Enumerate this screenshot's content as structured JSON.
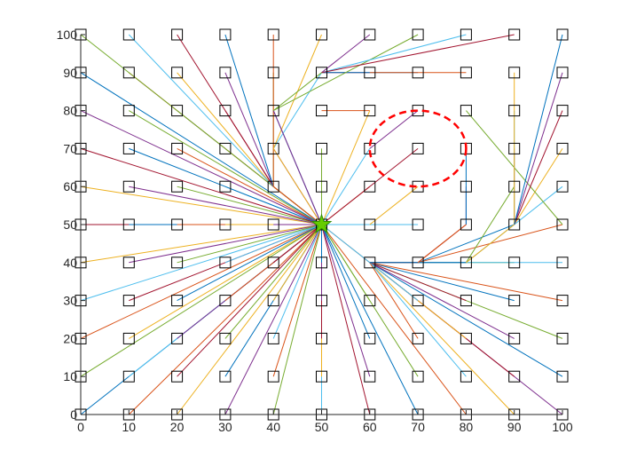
{
  "chart_data": {
    "type": "scatter",
    "title": "",
    "xlabel": "",
    "ylabel": "",
    "xlim": [
      0,
      100
    ],
    "ylim": [
      0,
      100
    ],
    "xticks": [
      0,
      10,
      20,
      30,
      40,
      50,
      60,
      70,
      80,
      90,
      100
    ],
    "yticks": [
      0,
      10,
      20,
      30,
      40,
      50,
      60,
      70,
      80,
      90,
      100
    ],
    "grid": false,
    "legend": "none",
    "nodes": {
      "marker": "square",
      "x": [
        0,
        10,
        20,
        30,
        40,
        50,
        60,
        70,
        80,
        90,
        100
      ],
      "y": [
        0,
        10,
        20,
        30,
        40,
        50,
        60,
        70,
        80,
        90,
        100
      ]
    },
    "goal": {
      "x": 50,
      "y": 50,
      "marker": "star",
      "color": "#66cc00"
    },
    "obstacle": {
      "shape": "circle",
      "cx": 70,
      "cy": 70,
      "r": 10,
      "color": "#ff0000",
      "style": "dashed"
    },
    "line_colors": [
      "#0072bd",
      "#d95319",
      "#edb120",
      "#7e2f8e",
      "#77ac30",
      "#4dbeee",
      "#a2142f"
    ],
    "edges": [
      [
        [
          0,
          0
        ],
        [
          50,
          50
        ]
      ],
      [
        [
          10,
          0
        ],
        [
          50,
          50
        ]
      ],
      [
        [
          20,
          0
        ],
        [
          50,
          50
        ]
      ],
      [
        [
          30,
          0
        ],
        [
          50,
          50
        ]
      ],
      [
        [
          40,
          0
        ],
        [
          50,
          50
        ]
      ],
      [
        [
          50,
          0
        ],
        [
          50,
          50
        ]
      ],
      [
        [
          60,
          0
        ],
        [
          50,
          50
        ]
      ],
      [
        [
          70,
          0
        ],
        [
          50,
          50
        ]
      ],
      [
        [
          80,
          0
        ],
        [
          50,
          50
        ]
      ],
      [
        [
          90,
          0
        ],
        [
          60,
          40
        ]
      ],
      [
        [
          100,
          0
        ],
        [
          60,
          40
        ]
      ],
      [
        [
          0,
          10
        ],
        [
          50,
          50
        ]
      ],
      [
        [
          10,
          10
        ],
        [
          50,
          50
        ]
      ],
      [
        [
          20,
          10
        ],
        [
          50,
          50
        ]
      ],
      [
        [
          30,
          10
        ],
        [
          50,
          50
        ]
      ],
      [
        [
          40,
          10
        ],
        [
          50,
          50
        ]
      ],
      [
        [
          50,
          10
        ],
        [
          50,
          50
        ]
      ],
      [
        [
          60,
          10
        ],
        [
          50,
          50
        ]
      ],
      [
        [
          70,
          10
        ],
        [
          50,
          50
        ]
      ],
      [
        [
          80,
          10
        ],
        [
          60,
          40
        ]
      ],
      [
        [
          90,
          10
        ],
        [
          60,
          40
        ]
      ],
      [
        [
          100,
          10
        ],
        [
          60,
          40
        ]
      ],
      [
        [
          0,
          20
        ],
        [
          50,
          50
        ]
      ],
      [
        [
          10,
          20
        ],
        [
          50,
          50
        ]
      ],
      [
        [
          20,
          20
        ],
        [
          50,
          50
        ]
      ],
      [
        [
          30,
          20
        ],
        [
          50,
          50
        ]
      ],
      [
        [
          40,
          20
        ],
        [
          50,
          50
        ]
      ],
      [
        [
          50,
          20
        ],
        [
          50,
          50
        ]
      ],
      [
        [
          60,
          20
        ],
        [
          50,
          50
        ]
      ],
      [
        [
          70,
          20
        ],
        [
          60,
          40
        ]
      ],
      [
        [
          80,
          20
        ],
        [
          60,
          40
        ]
      ],
      [
        [
          90,
          20
        ],
        [
          60,
          40
        ]
      ],
      [
        [
          100,
          20
        ],
        [
          60,
          40
        ]
      ],
      [
        [
          0,
          30
        ],
        [
          50,
          50
        ]
      ],
      [
        [
          10,
          30
        ],
        [
          50,
          50
        ]
      ],
      [
        [
          20,
          30
        ],
        [
          50,
          50
        ]
      ],
      [
        [
          30,
          30
        ],
        [
          50,
          50
        ]
      ],
      [
        [
          40,
          30
        ],
        [
          50,
          50
        ]
      ],
      [
        [
          50,
          30
        ],
        [
          50,
          50
        ]
      ],
      [
        [
          60,
          30
        ],
        [
          50,
          50
        ]
      ],
      [
        [
          70,
          30
        ],
        [
          60,
          40
        ]
      ],
      [
        [
          80,
          30
        ],
        [
          60,
          40
        ]
      ],
      [
        [
          90,
          30
        ],
        [
          60,
          40
        ]
      ],
      [
        [
          100,
          30
        ],
        [
          60,
          40
        ]
      ],
      [
        [
          0,
          40
        ],
        [
          50,
          50
        ]
      ],
      [
        [
          10,
          40
        ],
        [
          50,
          50
        ]
      ],
      [
        [
          20,
          40
        ],
        [
          50,
          50
        ]
      ],
      [
        [
          30,
          40
        ],
        [
          50,
          50
        ]
      ],
      [
        [
          40,
          40
        ],
        [
          50,
          50
        ]
      ],
      [
        [
          50,
          40
        ],
        [
          50,
          50
        ]
      ],
      [
        [
          60,
          40
        ],
        [
          50,
          50
        ]
      ],
      [
        [
          70,
          40
        ],
        [
          60,
          40
        ]
      ],
      [
        [
          80,
          40
        ],
        [
          60,
          40
        ]
      ],
      [
        [
          90,
          40
        ],
        [
          60,
          40
        ]
      ],
      [
        [
          100,
          40
        ],
        [
          60,
          40
        ]
      ],
      [
        [
          0,
          50
        ],
        [
          50,
          50
        ]
      ],
      [
        [
          10,
          50
        ],
        [
          50,
          50
        ]
      ],
      [
        [
          20,
          50
        ],
        [
          50,
          50
        ]
      ],
      [
        [
          30,
          50
        ],
        [
          50,
          50
        ]
      ],
      [
        [
          40,
          50
        ],
        [
          50,
          50
        ]
      ],
      [
        [
          60,
          50
        ],
        [
          50,
          50
        ]
      ],
      [
        [
          70,
          50
        ],
        [
          50,
          50
        ]
      ],
      [
        [
          80,
          50
        ],
        [
          70,
          40
        ]
      ],
      [
        [
          90,
          50
        ],
        [
          70,
          40
        ]
      ],
      [
        [
          100,
          50
        ],
        [
          70,
          40
        ]
      ],
      [
        [
          0,
          60
        ],
        [
          50,
          50
        ]
      ],
      [
        [
          10,
          60
        ],
        [
          50,
          50
        ]
      ],
      [
        [
          20,
          60
        ],
        [
          50,
          50
        ]
      ],
      [
        [
          30,
          60
        ],
        [
          50,
          50
        ]
      ],
      [
        [
          40,
          60
        ],
        [
          50,
          50
        ]
      ],
      [
        [
          50,
          60
        ],
        [
          50,
          50
        ]
      ],
      [
        [
          60,
          60
        ],
        [
          50,
          50
        ]
      ],
      [
        [
          70,
          60
        ],
        [
          60,
          50
        ]
      ],
      [
        [
          80,
          60
        ],
        [
          80,
          50
        ]
      ],
      [
        [
          90,
          60
        ],
        [
          80,
          40
        ]
      ],
      [
        [
          100,
          60
        ],
        [
          80,
          40
        ]
      ],
      [
        [
          0,
          70
        ],
        [
          50,
          50
        ]
      ],
      [
        [
          10,
          70
        ],
        [
          50,
          50
        ]
      ],
      [
        [
          20,
          70
        ],
        [
          50,
          50
        ]
      ],
      [
        [
          30,
          70
        ],
        [
          50,
          50
        ]
      ],
      [
        [
          40,
          70
        ],
        [
          50,
          50
        ]
      ],
      [
        [
          50,
          70
        ],
        [
          50,
          50
        ]
      ],
      [
        [
          60,
          70
        ],
        [
          50,
          50
        ]
      ],
      [
        [
          70,
          70
        ],
        [
          50,
          50
        ]
      ],
      [
        [
          80,
          70
        ],
        [
          80,
          50
        ]
      ],
      [
        [
          90,
          70
        ],
        [
          90,
          50
        ]
      ],
      [
        [
          100,
          70
        ],
        [
          90,
          50
        ]
      ],
      [
        [
          0,
          80
        ],
        [
          50,
          50
        ]
      ],
      [
        [
          10,
          80
        ],
        [
          50,
          50
        ]
      ],
      [
        [
          20,
          80
        ],
        [
          50,
          50
        ]
      ],
      [
        [
          30,
          80
        ],
        [
          40,
          60
        ]
      ],
      [
        [
          40,
          80
        ],
        [
          50,
          50
        ]
      ],
      [
        [
          50,
          80
        ],
        [
          60,
          80
        ]
      ],
      [
        [
          60,
          80
        ],
        [
          50,
          50
        ]
      ],
      [
        [
          70,
          80
        ],
        [
          60,
          70
        ]
      ],
      [
        [
          80,
          80
        ],
        [
          100,
          50
        ]
      ],
      [
        [
          90,
          80
        ],
        [
          90,
          50
        ]
      ],
      [
        [
          100,
          80
        ],
        [
          90,
          50
        ]
      ],
      [
        [
          0,
          90
        ],
        [
          50,
          50
        ]
      ],
      [
        [
          10,
          90
        ],
        [
          50,
          50
        ]
      ],
      [
        [
          20,
          90
        ],
        [
          40,
          60
        ]
      ],
      [
        [
          30,
          90
        ],
        [
          40,
          60
        ]
      ],
      [
        [
          40,
          90
        ],
        [
          40,
          60
        ]
      ],
      [
        [
          50,
          90
        ],
        [
          40,
          70
        ]
      ],
      [
        [
          60,
          90
        ],
        [
          50,
          90
        ]
      ],
      [
        [
          70,
          90
        ],
        [
          50,
          90
        ]
      ],
      [
        [
          80,
          90
        ],
        [
          60,
          90
        ]
      ],
      [
        [
          90,
          90
        ],
        [
          90,
          50
        ]
      ],
      [
        [
          100,
          90
        ],
        [
          90,
          50
        ]
      ],
      [
        [
          0,
          100
        ],
        [
          50,
          50
        ]
      ],
      [
        [
          10,
          100
        ],
        [
          40,
          60
        ]
      ],
      [
        [
          20,
          100
        ],
        [
          40,
          60
        ]
      ],
      [
        [
          30,
          100
        ],
        [
          40,
          60
        ]
      ],
      [
        [
          40,
          100
        ],
        [
          40,
          60
        ]
      ],
      [
        [
          50,
          100
        ],
        [
          40,
          70
        ]
      ],
      [
        [
          60,
          100
        ],
        [
          50,
          90
        ]
      ],
      [
        [
          70,
          100
        ],
        [
          40,
          80
        ]
      ],
      [
        [
          80,
          100
        ],
        [
          50,
          90
        ]
      ],
      [
        [
          90,
          100
        ],
        [
          50,
          90
        ]
      ],
      [
        [
          100,
          100
        ],
        [
          90,
          50
        ]
      ],
      [
        [
          40,
          60
        ],
        [
          50,
          50
        ]
      ],
      [
        [
          40,
          70
        ],
        [
          50,
          50
        ]
      ],
      [
        [
          40,
          80
        ],
        [
          50,
          50
        ]
      ],
      [
        [
          50,
          90
        ],
        [
          40,
          80
        ]
      ],
      [
        [
          60,
          40
        ],
        [
          50,
          50
        ]
      ],
      [
        [
          70,
          40
        ],
        [
          60,
          40
        ]
      ],
      [
        [
          80,
          40
        ],
        [
          60,
          40
        ]
      ],
      [
        [
          80,
          50
        ],
        [
          70,
          40
        ]
      ],
      [
        [
          90,
          50
        ],
        [
          80,
          40
        ]
      ]
    ]
  }
}
